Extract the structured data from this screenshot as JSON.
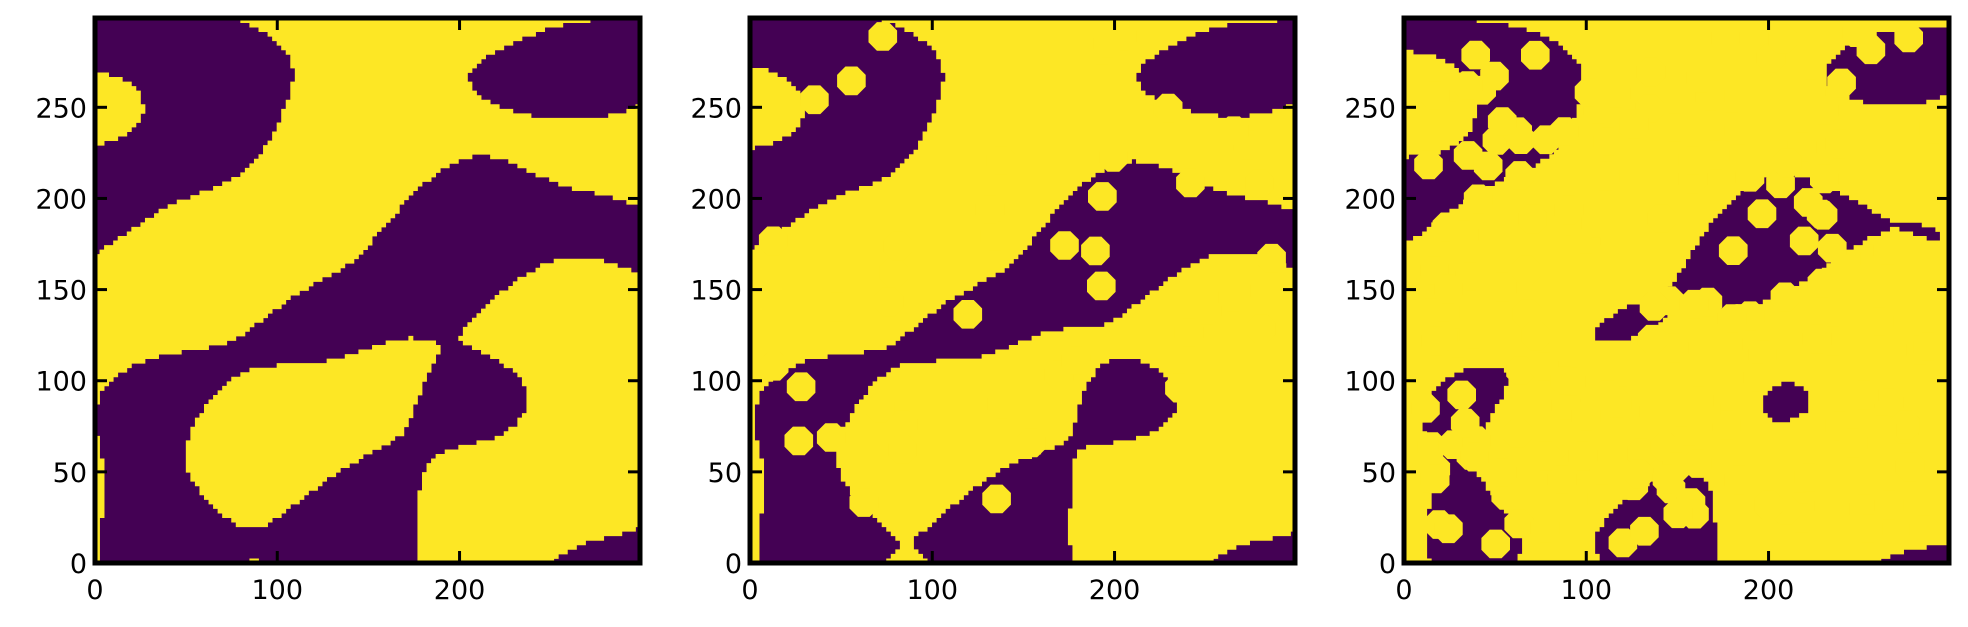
{
  "chart_data": [
    {
      "type": "heatmap",
      "title": "",
      "xlabel": "",
      "ylabel": "",
      "xlim": [
        0,
        299
      ],
      "ylim": [
        0,
        299
      ],
      "x_ticks": [
        0,
        100,
        200
      ],
      "y_ticks": [
        0,
        50,
        100,
        150,
        200,
        250
      ],
      "x_tick_labels": [
        "0",
        "100",
        "200"
      ],
      "y_tick_labels": [
        "0",
        "50",
        "100",
        "150",
        "200",
        "250"
      ],
      "colormap": "viridis (binary)",
      "values_shown": [
        "low (purple)",
        "high (yellow)"
      ],
      "octagon_inclusions": 0,
      "yellow_fraction": 0.55,
      "grid": false,
      "legend": "none"
    },
    {
      "type": "heatmap",
      "title": "",
      "xlabel": "",
      "ylabel": "",
      "xlim": [
        0,
        299
      ],
      "ylim": [
        0,
        299
      ],
      "x_ticks": [
        0,
        100,
        200
      ],
      "y_ticks": [
        0,
        50,
        100,
        150,
        200,
        250
      ],
      "x_tick_labels": [
        "0",
        "100",
        "200"
      ],
      "y_tick_labels": [
        "0",
        "50",
        "100",
        "150",
        "200",
        "250"
      ],
      "colormap": "viridis (binary)",
      "values_shown": [
        "low (purple)",
        "high (yellow)"
      ],
      "octagon_inclusions": 45,
      "yellow_fraction": 0.6,
      "grid": false,
      "legend": "none"
    },
    {
      "type": "heatmap",
      "title": "",
      "xlabel": "",
      "ylabel": "",
      "xlim": [
        0,
        299
      ],
      "ylim": [
        0,
        299
      ],
      "x_ticks": [
        0,
        100,
        200
      ],
      "y_ticks": [
        0,
        50,
        100,
        150,
        200,
        250
      ],
      "x_tick_labels": [
        "0",
        "100",
        "200"
      ],
      "y_tick_labels": [
        "0",
        "50",
        "100",
        "150",
        "200",
        "250"
      ],
      "colormap": "viridis (binary)",
      "values_shown": [
        "low (purple)",
        "high (yellow)"
      ],
      "octagon_inclusions": 170,
      "yellow_fraction": 0.75,
      "grid": false,
      "legend": "none"
    }
  ],
  "colors": {
    "low": "#440154",
    "high": "#fde725",
    "axis": "#000000"
  }
}
